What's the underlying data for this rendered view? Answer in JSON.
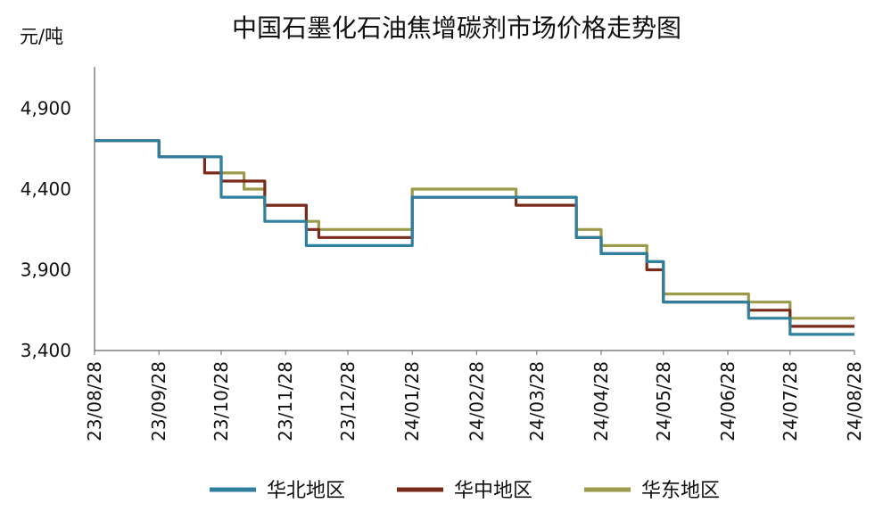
{
  "chart_data": {
    "type": "line",
    "title": "中国石墨化石油焦增碳剂市场价格走势图",
    "ylabel": "元/吨",
    "xlabel": "",
    "ylim": [
      3400,
      5200
    ],
    "yticks": [
      3400,
      3900,
      4400,
      4900
    ],
    "ytick_labels": [
      "3,400",
      "3,900",
      "4,400",
      "4,900"
    ],
    "x_range": [
      "2023-08-28",
      "2024-08-28"
    ],
    "xtick_labels": [
      "23/08/28",
      "23/09/28",
      "23/10/28",
      "23/11/28",
      "23/12/28",
      "24/01/28",
      "24/02/28",
      "24/03/28",
      "24/04/28",
      "24/05/28",
      "24/06/28",
      "24/07/28",
      "24/08/28"
    ],
    "xtick_dates": [
      "2023-08-28",
      "2023-09-28",
      "2023-10-28",
      "2023-11-28",
      "2023-12-28",
      "2024-01-28",
      "2024-02-28",
      "2024-03-28",
      "2024-04-28",
      "2024-05-28",
      "2024-06-28",
      "2024-07-28",
      "2024-08-28"
    ],
    "grid": false,
    "legend_position": "bottom",
    "step": true,
    "series": [
      {
        "name": "华北地区",
        "color": "#2f7f9e",
        "points": [
          [
            "2023-08-28",
            4700
          ],
          [
            "2023-09-28",
            4600
          ],
          [
            "2023-10-20",
            4600
          ],
          [
            "2023-10-28",
            4350
          ],
          [
            "2023-11-18",
            4200
          ],
          [
            "2023-12-08",
            4050
          ],
          [
            "2024-01-28",
            4350
          ],
          [
            "2024-03-28",
            4350
          ],
          [
            "2024-04-11",
            4350
          ],
          [
            "2024-04-16",
            4100
          ],
          [
            "2024-04-28",
            4000
          ],
          [
            "2024-05-20",
            3950
          ],
          [
            "2024-05-28",
            3700
          ],
          [
            "2024-07-08",
            3600
          ],
          [
            "2024-07-28",
            3500
          ],
          [
            "2024-08-28",
            3500
          ]
        ]
      },
      {
        "name": "华中地区",
        "color": "#7a2a1a",
        "points": [
          [
            "2023-08-28",
            4700
          ],
          [
            "2023-09-28",
            4600
          ],
          [
            "2023-10-20",
            4500
          ],
          [
            "2023-10-28",
            4450
          ],
          [
            "2023-11-18",
            4300
          ],
          [
            "2023-12-08",
            4150
          ],
          [
            "2023-12-14",
            4100
          ],
          [
            "2024-01-28",
            4350
          ],
          [
            "2024-03-18",
            4300
          ],
          [
            "2024-04-16",
            4100
          ],
          [
            "2024-04-28",
            4000
          ],
          [
            "2024-05-20",
            3900
          ],
          [
            "2024-05-28",
            3700
          ],
          [
            "2024-07-08",
            3650
          ],
          [
            "2024-07-28",
            3550
          ],
          [
            "2024-08-28",
            3550
          ]
        ]
      },
      {
        "name": "华东地区",
        "color": "#9a9a4a",
        "points": [
          [
            "2023-08-28",
            4700
          ],
          [
            "2023-09-28",
            4600
          ],
          [
            "2023-10-28",
            4500
          ],
          [
            "2023-11-08",
            4400
          ],
          [
            "2023-11-18",
            4300
          ],
          [
            "2023-12-08",
            4200
          ],
          [
            "2023-12-14",
            4150
          ],
          [
            "2024-01-28",
            4400
          ],
          [
            "2024-03-18",
            4350
          ],
          [
            "2024-04-16",
            4150
          ],
          [
            "2024-04-28",
            4050
          ],
          [
            "2024-05-20",
            3950
          ],
          [
            "2024-05-28",
            3750
          ],
          [
            "2024-07-08",
            3700
          ],
          [
            "2024-07-28",
            3600
          ],
          [
            "2024-08-28",
            3600
          ]
        ]
      }
    ]
  }
}
